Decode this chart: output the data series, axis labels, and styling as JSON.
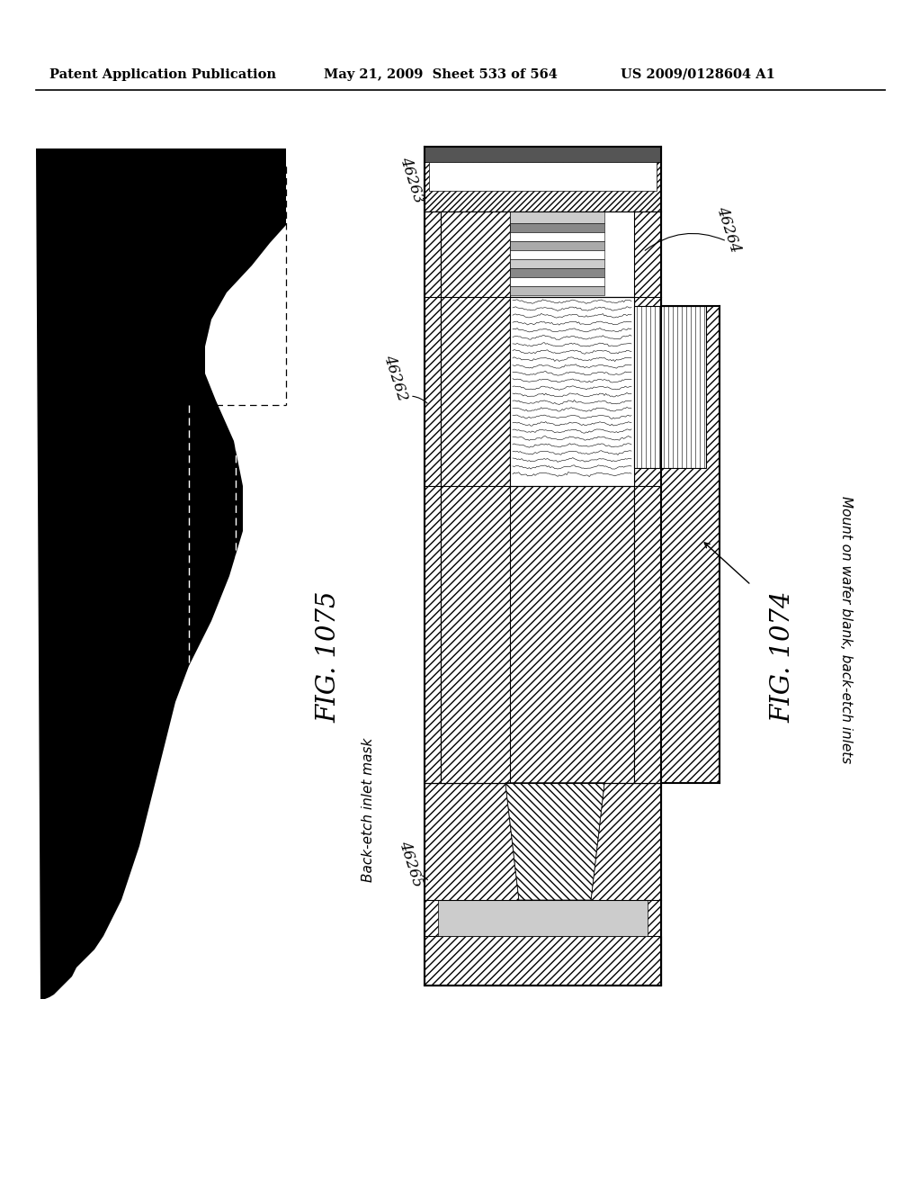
{
  "header_left": "Patent Application Publication",
  "header_mid": "May 21, 2009  Sheet 533 of 564",
  "header_right": "US 2009/0128604 A1",
  "fig_left_label": "FIG. 1075",
  "fig_right_label": "FIG. 1074",
  "label_46263": "46263",
  "label_46262": "46262",
  "label_46264": "46264",
  "label_46265": "46265",
  "annotation_left": "Back-etch inlet mask",
  "annotation_right": "Mount on wafer blank, back-etch inlets",
  "bg_color": "#ffffff",
  "line_color": "#000000"
}
